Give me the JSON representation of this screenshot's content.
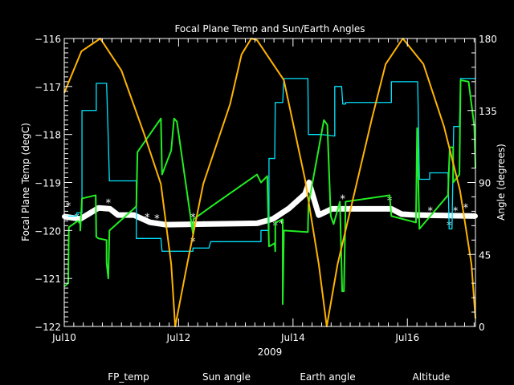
{
  "chart_data": {
    "type": "line",
    "title": "Focal Plane Temp and Sun/Earth Angles",
    "xlabel": "2009",
    "ylabel": "Focal Plane Temp (degC)",
    "y2label": "Angle (degrees)",
    "x_unit": "days since Jul10 00:00",
    "xlim": [
      0,
      7.19
    ],
    "ylim": [
      -122,
      -116
    ],
    "y2lim": [
      0,
      180
    ],
    "x_ticks": [
      {
        "v": 0,
        "label": "Jul10"
      },
      {
        "v": 2,
        "label": "Jul12"
      },
      {
        "v": 4,
        "label": "Jul14"
      },
      {
        "v": 6,
        "label": "Jul16"
      }
    ],
    "y_ticks": [
      {
        "v": -116,
        "label": "−116"
      },
      {
        "v": -117,
        "label": "−117"
      },
      {
        "v": -118,
        "label": "−118"
      },
      {
        "v": -119,
        "label": "−119"
      },
      {
        "v": -120,
        "label": "−120"
      },
      {
        "v": -121,
        "label": "−121"
      },
      {
        "v": -122,
        "label": "−122"
      }
    ],
    "y2_ticks": [
      {
        "v": 180,
        "label": "180"
      },
      {
        "v": 135,
        "label": "135"
      },
      {
        "v": 90,
        "label": "90"
      },
      {
        "v": 45,
        "label": "45"
      },
      {
        "v": 0,
        "label": "0"
      }
    ],
    "legend": {
      "placement": "bottom"
    },
    "series": [
      {
        "name": "FP_temp",
        "axis": "left",
        "color": "#ffffff",
        "points": [
          [
            0,
            -119.71
          ],
          [
            0.28,
            -119.76
          ],
          [
            0.6,
            -119.53
          ],
          [
            0.8,
            -119.55
          ],
          [
            0.94,
            -119.68
          ],
          [
            1.22,
            -119.68
          ],
          [
            1.5,
            -119.83
          ],
          [
            1.78,
            -119.88
          ],
          [
            3.37,
            -119.85
          ],
          [
            3.65,
            -119.76
          ],
          [
            3.93,
            -119.54
          ],
          [
            4.21,
            -119.24
          ],
          [
            4.28,
            -119.0
          ],
          [
            4.45,
            -119.68
          ],
          [
            4.68,
            -119.55
          ],
          [
            5.72,
            -119.55
          ],
          [
            5.9,
            -119.66
          ],
          [
            6.18,
            -119.68
          ],
          [
            7.19,
            -119.7
          ]
        ],
        "outliers": [
          [
            0.07,
            -119.47
          ],
          [
            0.22,
            -119.7
          ],
          [
            0.77,
            -119.4
          ],
          [
            1.45,
            -119.7
          ],
          [
            1.62,
            -119.73
          ],
          [
            2.25,
            -119.7
          ],
          [
            2.25,
            -120.2
          ],
          [
            2.44,
            -119.87
          ],
          [
            3.41,
            -119.87
          ],
          [
            3.69,
            -119.88
          ],
          [
            3.8,
            -119.83
          ],
          [
            4.28,
            -119.0
          ],
          [
            4.87,
            -119.32
          ],
          [
            5.69,
            -119.35
          ],
          [
            6.18,
            -119.73
          ],
          [
            6.4,
            -119.57
          ],
          [
            6.73,
            -119.87
          ],
          [
            6.84,
            -119.57
          ],
          [
            7.02,
            -119.5
          ]
        ]
      },
      {
        "name": "Sun angle",
        "axis": "right",
        "color": "#00e5ff",
        "points": [
          [
            0,
            69
          ],
          [
            0.22,
            69
          ],
          [
            0.22,
            71
          ],
          [
            0.31,
            71
          ],
          [
            0.31,
            135
          ],
          [
            0.56,
            135
          ],
          [
            0.56,
            152
          ],
          [
            0.74,
            152
          ],
          [
            0.77,
            117
          ],
          [
            0.79,
            91
          ],
          [
            1.26,
            91
          ],
          [
            1.26,
            55
          ],
          [
            1.69,
            55
          ],
          [
            1.71,
            47
          ],
          [
            2.25,
            47
          ],
          [
            2.25,
            49
          ],
          [
            2.53,
            49
          ],
          [
            2.56,
            53
          ],
          [
            3.44,
            53
          ],
          [
            3.44,
            60
          ],
          [
            3.58,
            60
          ],
          [
            3.58,
            105
          ],
          [
            3.68,
            105
          ],
          [
            3.69,
            140
          ],
          [
            3.82,
            140
          ],
          [
            3.84,
            155
          ],
          [
            4.26,
            155
          ],
          [
            4.27,
            120
          ],
          [
            4.49,
            120
          ],
          [
            4.73,
            119
          ],
          [
            4.73,
            150
          ],
          [
            4.85,
            150
          ],
          [
            4.87,
            139
          ],
          [
            4.92,
            139
          ],
          [
            4.92,
            140
          ],
          [
            5.72,
            140
          ],
          [
            5.72,
            153
          ],
          [
            6.18,
            153
          ],
          [
            6.21,
            92
          ],
          [
            6.39,
            92
          ],
          [
            6.39,
            96
          ],
          [
            6.71,
            96
          ],
          [
            6.73,
            61
          ],
          [
            6.78,
            61
          ],
          [
            6.81,
            125
          ],
          [
            6.91,
            125
          ],
          [
            6.93,
            155
          ],
          [
            7.19,
            155
          ]
        ]
      },
      {
        "name": "Earth angle",
        "axis": "right",
        "color": "#22ee22",
        "points": [
          [
            0,
            25
          ],
          [
            0.07,
            27
          ],
          [
            0.08,
            62
          ],
          [
            0.24,
            66
          ],
          [
            0.28,
            64
          ],
          [
            0.28,
            60
          ],
          [
            0.31,
            80
          ],
          [
            0.55,
            82
          ],
          [
            0.56,
            56
          ],
          [
            0.6,
            55
          ],
          [
            0.74,
            54
          ],
          [
            0.74,
            40
          ],
          [
            0.77,
            30
          ],
          [
            0.79,
            60
          ],
          [
            1.26,
            75
          ],
          [
            1.28,
            109
          ],
          [
            1.69,
            130
          ],
          [
            1.71,
            95
          ],
          [
            1.87,
            110
          ],
          [
            1.92,
            130
          ],
          [
            1.97,
            128
          ],
          [
            2.25,
            58
          ],
          [
            2.26,
            67
          ],
          [
            2.57,
            75
          ],
          [
            3.37,
            95
          ],
          [
            3.44,
            90
          ],
          [
            3.55,
            94
          ],
          [
            3.58,
            50
          ],
          [
            3.68,
            52
          ],
          [
            3.69,
            47
          ],
          [
            3.69,
            65
          ],
          [
            3.82,
            67
          ],
          [
            3.82,
            14
          ],
          [
            3.84,
            60
          ],
          [
            4.26,
            59
          ],
          [
            4.27,
            76
          ],
          [
            4.54,
            129
          ],
          [
            4.6,
            126
          ],
          [
            4.66,
            69
          ],
          [
            4.71,
            64
          ],
          [
            4.82,
            78
          ],
          [
            4.86,
            22
          ],
          [
            4.89,
            22
          ],
          [
            4.92,
            78
          ],
          [
            5.69,
            82
          ],
          [
            5.72,
            69
          ],
          [
            6.15,
            65
          ],
          [
            6.17,
            124
          ],
          [
            6.21,
            61
          ],
          [
            6.71,
            82
          ],
          [
            6.74,
            112
          ],
          [
            6.8,
            112
          ],
          [
            6.8,
            90
          ],
          [
            6.91,
            95
          ],
          [
            6.93,
            154
          ],
          [
            7.07,
            153
          ],
          [
            7.17,
            125
          ],
          [
            7.19,
            99
          ]
        ]
      },
      {
        "name": "Altitude",
        "axis": "right",
        "color": "#ffb300",
        "points": [
          [
            0,
            146
          ],
          [
            0.3,
            172
          ],
          [
            0.63,
            180
          ],
          [
            1.0,
            160
          ],
          [
            1.4,
            120
          ],
          [
            1.69,
            89
          ],
          [
            1.87,
            39
          ],
          [
            1.94,
            0
          ],
          [
            2.15,
            39
          ],
          [
            2.43,
            89
          ],
          [
            2.9,
            139
          ],
          [
            3.1,
            170
          ],
          [
            3.27,
            180
          ],
          [
            3.37,
            179
          ],
          [
            3.84,
            154
          ],
          [
            4.21,
            92
          ],
          [
            4.45,
            39
          ],
          [
            4.59,
            0
          ],
          [
            4.78,
            39
          ],
          [
            5.15,
            95
          ],
          [
            5.38,
            130
          ],
          [
            5.62,
            164
          ],
          [
            5.92,
            180
          ],
          [
            6.28,
            164
          ],
          [
            6.64,
            125
          ],
          [
            6.92,
            85
          ],
          [
            7.12,
            39
          ],
          [
            7.19,
            5
          ]
        ]
      }
    ]
  }
}
